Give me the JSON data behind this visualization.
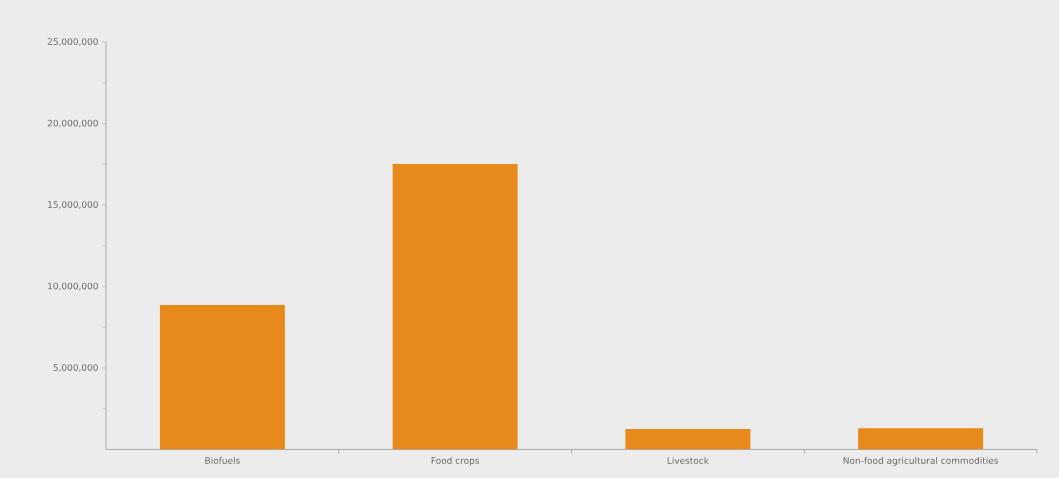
{
  "chart_data": {
    "type": "bar",
    "categories": [
      "Biofuels",
      "Food crops",
      "Livestock",
      "Non-food agricultural commodities"
    ],
    "values": [
      8870000,
      17520000,
      1260000,
      1300000
    ],
    "color": "#e8891c",
    "ylim": [
      0,
      25000000
    ],
    "yticks": [
      {
        "value": 2500000,
        "label": null
      },
      {
        "value": 5000000,
        "label": "5,000,000"
      },
      {
        "value": 7500000,
        "label": null
      },
      {
        "value": 10000000,
        "label": "10,000,000"
      },
      {
        "value": 12500000,
        "label": null
      },
      {
        "value": 15000000,
        "label": "15,000,000"
      },
      {
        "value": 17500000,
        "label": null
      },
      {
        "value": 20000000,
        "label": "20,000,000"
      },
      {
        "value": 22500000,
        "label": null
      },
      {
        "value": 25000000,
        "label": "25,000,000"
      }
    ]
  }
}
